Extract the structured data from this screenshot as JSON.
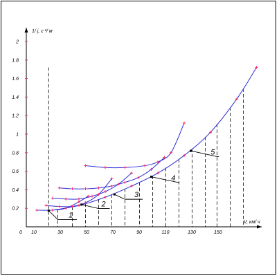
{
  "chart_data": {
    "type": "line",
    "ylabel": "1/ j, c ²/ м",
    "xlabel": "V, км/ ч",
    "xlim": [
      0,
      180
    ],
    "ylim": [
      0,
      2.0
    ],
    "x_ticks": [
      0,
      10,
      30,
      50,
      70,
      90,
      110,
      130,
      150
    ],
    "y_ticks": [
      0.2,
      0.4,
      0.6,
      0.8,
      1,
      1.2,
      1.4,
      1.6,
      1.8,
      2
    ],
    "y_tick_labels": [
      "0.2",
      "0.4",
      "0.6",
      "0.8",
      "1",
      "1.2",
      "1.4",
      "1.6",
      "1.8",
      "2"
    ],
    "dashed_verticals": [
      17,
      24,
      35,
      45,
      55,
      65,
      75,
      86,
      96,
      106,
      116,
      126,
      136,
      145,
      155,
      165
    ],
    "step_markers": [
      {
        "label": "1",
        "at": [
          17,
          0.175
        ],
        "label_at": [
          30,
          0.1
        ],
        "ref_x": 24
      },
      {
        "label": "2",
        "at": [
          42,
          0.24
        ],
        "label_at": [
          55,
          0.22
        ],
        "ref_x": 55
      },
      {
        "label": "3",
        "at": [
          67,
          0.35
        ],
        "label_at": [
          80,
          0.32
        ],
        "ref_x": 75
      },
      {
        "label": "4",
        "at": [
          95,
          0.54
        ],
        "label_at": [
          108,
          0.5
        ],
        "ref_x": 116
      },
      {
        "label": "5",
        "at": [
          125,
          0.82
        ],
        "label_at": [
          138,
          0.78
        ],
        "ref_x": 145
      }
    ],
    "series": [
      {
        "name": "",
        "values": [
          [
            8,
            0.18
          ],
          [
            20,
            0.18
          ],
          [
            30,
            0.2
          ],
          [
            40,
            0.27
          ],
          [
            47,
            0.33
          ]
        ]
      },
      {
        "name": "",
        "values": [
          [
            15,
            0.23
          ],
          [
            25,
            0.22
          ],
          [
            35,
            0.22
          ],
          [
            45,
            0.26
          ],
          [
            55,
            0.35
          ],
          [
            65,
            0.52
          ]
        ]
      },
      {
        "name": "",
        "values": [
          [
            20,
            0.31
          ],
          [
            30,
            0.3
          ],
          [
            40,
            0.3
          ],
          [
            50,
            0.33
          ],
          [
            60,
            0.38
          ],
          [
            70,
            0.46
          ],
          [
            80,
            0.58
          ]
        ]
      },
      {
        "name": "",
        "values": [
          [
            25,
            0.42
          ],
          [
            35,
            0.41
          ],
          [
            45,
            0.41
          ],
          [
            55,
            0.42
          ],
          [
            65,
            0.44
          ],
          [
            75,
            0.48
          ],
          [
            85,
            0.53
          ],
          [
            95,
            0.62
          ],
          [
            105,
            0.75
          ]
        ]
      },
      {
        "name": "",
        "values": [
          [
            45,
            0.66
          ],
          [
            60,
            0.64
          ],
          [
            75,
            0.64
          ],
          [
            90,
            0.66
          ],
          [
            100,
            0.7
          ],
          [
            110,
            0.8
          ],
          [
            120,
            1.12
          ]
        ]
      },
      {
        "name": "",
        "values": [
          [
            20,
            0.18
          ],
          [
            40,
            0.23
          ],
          [
            60,
            0.32
          ],
          [
            80,
            0.44
          ],
          [
            100,
            0.58
          ],
          [
            120,
            0.77
          ],
          [
            140,
            1.02
          ],
          [
            160,
            1.38
          ],
          [
            175,
            1.72
          ]
        ]
      }
    ],
    "curve_color": "#2b2bd6",
    "point_color": "#ff2a6a",
    "grid": false
  }
}
